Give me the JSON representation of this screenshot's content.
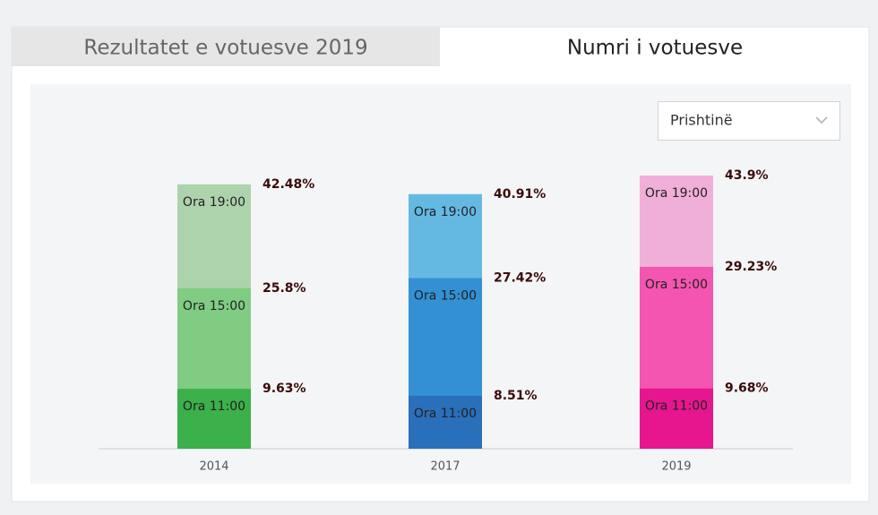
{
  "tabs": [
    "Rezultatet e votuesve 2019",
    "Numri i votuesve"
  ],
  "dropdown": {
    "selected": "Prishtinë"
  },
  "chart_data": {
    "type": "bar",
    "categories": [
      "2014",
      "2017",
      "2019"
    ],
    "series": [
      {
        "name": "Ora 11:00",
        "colors": [
          "#3cb04a",
          "#2a6fba",
          "#e6168f"
        ],
        "values": [
          9.63,
          8.51,
          9.68
        ],
        "value_labels": [
          "9.63%",
          "8.51%",
          "9.68%"
        ]
      },
      {
        "name": "Ora 15:00",
        "colors": [
          "#80cc82",
          "#3390d3",
          "#f455b0"
        ],
        "values": [
          25.8,
          27.42,
          29.23
        ],
        "value_labels": [
          "25.8%",
          "27.42%",
          "29.23%"
        ]
      },
      {
        "name": "Ora 19:00",
        "colors": [
          "#acd3ab",
          "#64b9e3",
          "#f0afd9"
        ],
        "values": [
          42.48,
          40.91,
          43.9
        ],
        "value_labels": [
          "42.48%",
          "40.91%",
          "43.9%"
        ]
      }
    ]
  }
}
